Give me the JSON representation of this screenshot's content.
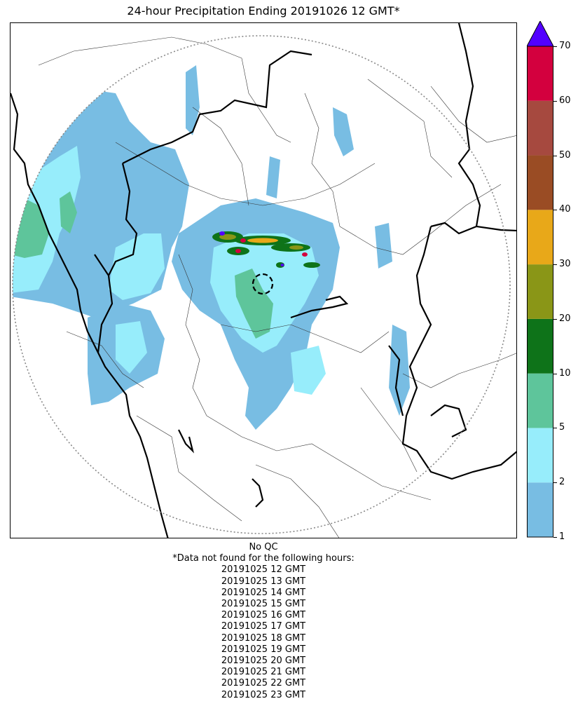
{
  "title": "24-hour Precipitation Ending 20191026 12 GMT*",
  "colorbar": {
    "ticks": [
      "1",
      "2",
      "5",
      "10",
      "20",
      "30",
      "40",
      "50",
      "60",
      "70"
    ],
    "colors": [
      "#78bde3",
      "#97edfb",
      "#5ec59b",
      "#0e7319",
      "#8a9617",
      "#e8a819",
      "#9a4c24",
      "#a6493f",
      "#d3003e"
    ],
    "extend_color": "#5200ff"
  },
  "qc_note": "No QC",
  "missing_header": "*Data not found for the following hours:",
  "missing_hours": [
    "20191025 12 GMT",
    "20191025 13 GMT",
    "20191025 14 GMT",
    "20191025 15 GMT",
    "20191025 16 GMT",
    "20191025 17 GMT",
    "20191025 18 GMT",
    "20191025 19 GMT",
    "20191025 20 GMT",
    "20191025 21 GMT",
    "20191025 22 GMT",
    "20191025 23 GMT"
  ]
}
